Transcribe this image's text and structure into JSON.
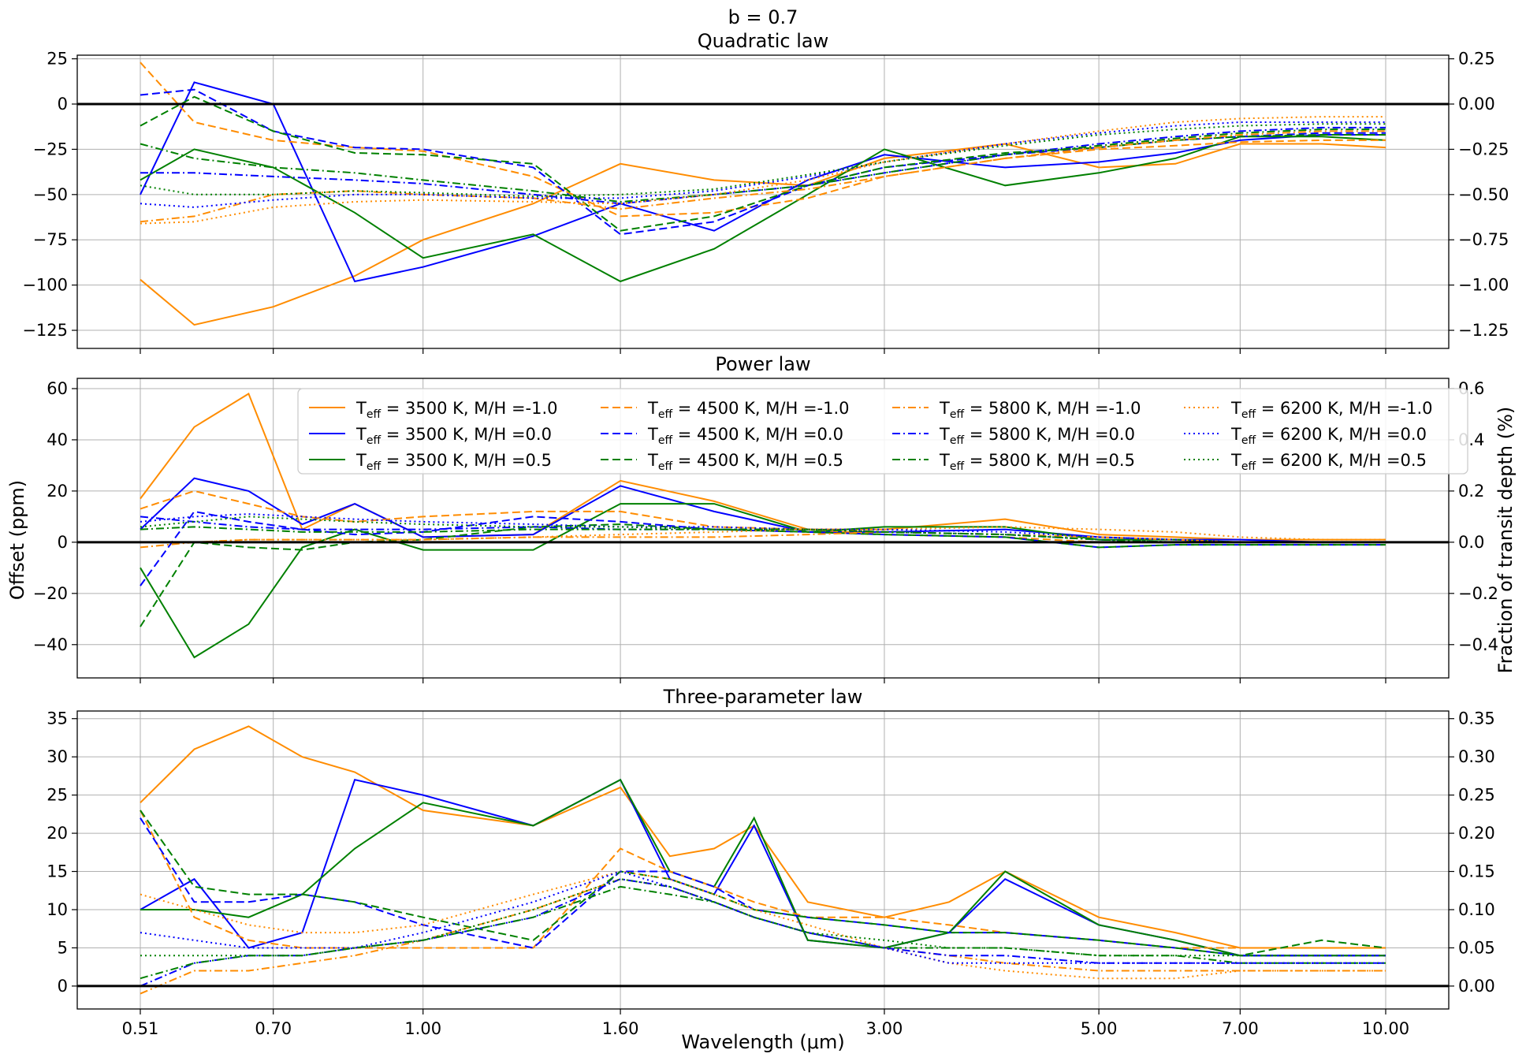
{
  "figure": {
    "suptitle": "b = 0.7",
    "xlabel": "Wavelength (μm)",
    "ylabel_left": "Offset (ppm)",
    "ylabel_right": "Fraction of transit depth (%)"
  },
  "colors": {
    "3500": "#ff8c00",
    "4500": "#ff8c00",
    "orange": "#ff8c00",
    "blue": "#0000ff",
    "green": "#008000"
  },
  "legend": {
    "entries": [
      {
        "teff": "3500",
        "mh": "-1.0",
        "color": "#ff8c00",
        "style": "solid"
      },
      {
        "teff": "3500",
        "mh": "0.0",
        "color": "#0000ff",
        "style": "solid"
      },
      {
        "teff": "3500",
        "mh": "0.5",
        "color": "#008000",
        "style": "solid"
      },
      {
        "teff": "4500",
        "mh": "-1.0",
        "color": "#ff8c00",
        "style": "dashed"
      },
      {
        "teff": "4500",
        "mh": "0.0",
        "color": "#0000ff",
        "style": "dashed"
      },
      {
        "teff": "4500",
        "mh": "0.5",
        "color": "#008000",
        "style": "dashed"
      },
      {
        "teff": "5800",
        "mh": "-1.0",
        "color": "#ff8c00",
        "style": "dashdot"
      },
      {
        "teff": "5800",
        "mh": "0.0",
        "color": "#0000ff",
        "style": "dashdot"
      },
      {
        "teff": "5800",
        "mh": "0.5",
        "color": "#008000",
        "style": "dashdot"
      },
      {
        "teff": "6200",
        "mh": "-1.0",
        "color": "#ff8c00",
        "style": "dotted"
      },
      {
        "teff": "6200",
        "mh": "0.0",
        "color": "#0000ff",
        "style": "dotted"
      },
      {
        "teff": "6200",
        "mh": "0.5",
        "color": "#008000",
        "style": "dotted"
      }
    ],
    "teff_prefix": "T",
    "teff_sub": "eff",
    "unit": "K",
    "mh_prefix": "M/H ="
  },
  "chart_data": [
    {
      "type": "line",
      "title": "Quadratic law",
      "xscale": "log",
      "xlim": [
        0.51,
        9.9
      ],
      "xticks": [
        "0.51",
        "0.70",
        "1.00",
        "1.60",
        "3.00",
        "5.00",
        "7.00",
        "10.00"
      ],
      "ylim": [
        -135,
        27
      ],
      "yticks": [
        "25",
        "0",
        "−25",
        "−50",
        "−75",
        "−100",
        "−125"
      ],
      "yticks_right": [
        "0.25",
        "0.00",
        "−0.25",
        "−0.50",
        "−0.75",
        "−1.00",
        "−1.25"
      ],
      "grid": true,
      "zero_line": true,
      "x": [
        0.51,
        0.58,
        0.7,
        0.85,
        1.0,
        1.3,
        1.6,
        2.0,
        2.5,
        3.0,
        4.0,
        5.0,
        6.0,
        7.0,
        8.5,
        9.9
      ],
      "series": [
        {
          "key": "3500/-1.0",
          "values": [
            -97,
            -122,
            -112,
            -95,
            -75,
            -55,
            -33,
            -42,
            -45,
            -30,
            -22,
            -35,
            -33,
            -22,
            -22,
            -24
          ]
        },
        {
          "key": "3500/0.0",
          "values": [
            -50,
            12,
            0,
            -98,
            -90,
            -73,
            -55,
            -70,
            -42,
            -28,
            -35,
            -32,
            -27,
            -20,
            -17,
            -17
          ]
        },
        {
          "key": "3500/0.5",
          "values": [
            -42,
            -25,
            -35,
            -60,
            -85,
            -72,
            -98,
            -80,
            -50,
            -25,
            -45,
            -38,
            -30,
            -18,
            -18,
            -20
          ]
        },
        {
          "key": "4500/-1.0",
          "values": [
            23,
            -10,
            -20,
            -24,
            -26,
            -40,
            -62,
            -60,
            -52,
            -40,
            -30,
            -25,
            -23,
            -21,
            -20,
            -20
          ]
        },
        {
          "key": "4500/0.0",
          "values": [
            5,
            8,
            -15,
            -24,
            -25,
            -35,
            -72,
            -65,
            -45,
            -35,
            -28,
            -24,
            -20,
            -18,
            -16,
            -16
          ]
        },
        {
          "key": "4500/0.5",
          "values": [
            -12,
            4,
            -15,
            -27,
            -28,
            -33,
            -70,
            -62,
            -45,
            -35,
            -27,
            -24,
            -20,
            -18,
            -17,
            -17
          ]
        },
        {
          "key": "5800/-1.0",
          "values": [
            -65,
            -62,
            -50,
            -48,
            -50,
            -52,
            -58,
            -52,
            -47,
            -40,
            -30,
            -24,
            -20,
            -17,
            -15,
            -15
          ]
        },
        {
          "key": "5800/0.0",
          "values": [
            -38,
            -38,
            -40,
            -42,
            -44,
            -50,
            -55,
            -50,
            -45,
            -38,
            -28,
            -22,
            -18,
            -15,
            -13,
            -13
          ]
        },
        {
          "key": "5800/0.5",
          "values": [
            -22,
            -30,
            -35,
            -38,
            -42,
            -48,
            -54,
            -50,
            -45,
            -38,
            -28,
            -23,
            -19,
            -16,
            -14,
            -14
          ]
        },
        {
          "key": "6200/-1.0",
          "values": [
            -66,
            -65,
            -57,
            -54,
            -53,
            -54,
            -55,
            -50,
            -42,
            -32,
            -22,
            -15,
            -10,
            -8,
            -7,
            -7
          ]
        },
        {
          "key": "6200/0.0",
          "values": [
            -55,
            -57,
            -53,
            -50,
            -50,
            -52,
            -52,
            -48,
            -40,
            -32,
            -22,
            -16,
            -12,
            -10,
            -10,
            -10
          ]
        },
        {
          "key": "6200/0.5",
          "values": [
            -45,
            -50,
            -50,
            -48,
            -49,
            -51,
            -50,
            -47,
            -39,
            -32,
            -23,
            -17,
            -14,
            -12,
            -11,
            -11
          ]
        }
      ]
    },
    {
      "type": "line",
      "title": "Power law",
      "xscale": "log",
      "xlim": [
        0.51,
        9.9
      ],
      "xticks": [
        "0.51",
        "0.70",
        "1.00",
        "1.60",
        "3.00",
        "5.00",
        "7.00",
        "10.00"
      ],
      "ylim": [
        -53,
        64
      ],
      "yticks": [
        "60",
        "40",
        "20",
        "0",
        "−20",
        "−40"
      ],
      "yticks_right": [
        "0.6",
        "0.4",
        "0.2",
        "0.0",
        "−0.2",
        "−0.4"
      ],
      "grid": true,
      "zero_line": true,
      "x": [
        0.51,
        0.58,
        0.66,
        0.75,
        0.85,
        1.0,
        1.3,
        1.6,
        2.0,
        2.5,
        3.0,
        4.0,
        5.0,
        6.0,
        7.0,
        8.5,
        9.9
      ],
      "series": [
        {
          "key": "3500/-1.0",
          "values": [
            17,
            45,
            58,
            5,
            15,
            2,
            3,
            24,
            16,
            5,
            5,
            9,
            3,
            2,
            1,
            1,
            1
          ]
        },
        {
          "key": "3500/0.0",
          "values": [
            5,
            25,
            20,
            7,
            15,
            2,
            3,
            22,
            12,
            4,
            4,
            5,
            2,
            1,
            1,
            0,
            0
          ]
        },
        {
          "key": "3500/0.5",
          "values": [
            -10,
            -45,
            -32,
            -2,
            5,
            -3,
            -3,
            15,
            15,
            4,
            6,
            6,
            1,
            1,
            0,
            0,
            0
          ]
        },
        {
          "key": "4500/-1.0",
          "values": [
            13,
            20,
            15,
            10,
            8,
            10,
            12,
            12,
            6,
            5,
            3,
            2,
            0,
            0,
            0,
            0,
            0
          ]
        },
        {
          "key": "4500/0.0",
          "values": [
            -17,
            12,
            8,
            5,
            3,
            4,
            10,
            8,
            5,
            4,
            3,
            2,
            -2,
            -1,
            -1,
            -1,
            -1
          ]
        },
        {
          "key": "4500/0.5",
          "values": [
            -33,
            0,
            -2,
            -3,
            0,
            1,
            6,
            7,
            5,
            4,
            3,
            2,
            -2,
            -1,
            -1,
            -1,
            -1
          ]
        },
        {
          "key": "5800/-1.0",
          "values": [
            -2,
            0,
            1,
            1,
            1,
            1,
            2,
            2,
            2,
            3,
            4,
            3,
            2,
            1,
            0,
            0,
            0
          ]
        },
        {
          "key": "5800/0.0",
          "values": [
            10,
            8,
            6,
            5,
            5,
            5,
            6,
            5,
            5,
            5,
            4,
            3,
            1,
            0,
            0,
            0,
            0
          ]
        },
        {
          "key": "5800/0.5",
          "values": [
            5,
            6,
            5,
            4,
            4,
            4,
            5,
            5,
            5,
            5,
            4,
            3,
            1,
            0,
            0,
            0,
            0
          ]
        },
        {
          "key": "6200/-1.0",
          "values": [
            0,
            0,
            1,
            1,
            1,
            1,
            2,
            3,
            4,
            5,
            5,
            6,
            5,
            4,
            2,
            1,
            1
          ]
        },
        {
          "key": "6200/0.0",
          "values": [
            8,
            10,
            11,
            10,
            9,
            8,
            7,
            6,
            6,
            5,
            5,
            4,
            2,
            1,
            0,
            0,
            0
          ]
        },
        {
          "key": "6200/0.5",
          "values": [
            6,
            8,
            10,
            9,
            8,
            7,
            6,
            6,
            5,
            5,
            4,
            3,
            1,
            0,
            0,
            0,
            0
          ]
        }
      ]
    },
    {
      "type": "line",
      "title": "Three-parameter law",
      "xscale": "log",
      "xlim": [
        0.51,
        9.9
      ],
      "xticks": [
        "0.51",
        "0.70",
        "1.00",
        "1.60",
        "3.00",
        "5.00",
        "7.00",
        "10.00"
      ],
      "ylim": [
        -3,
        36
      ],
      "yticks": [
        "35",
        "30",
        "25",
        "20",
        "15",
        "10",
        "5",
        "0"
      ],
      "yticks_right": [
        "0.35",
        "0.30",
        "0.25",
        "0.20",
        "0.15",
        "0.10",
        "0.05",
        "0.00"
      ],
      "grid": true,
      "zero_line": true,
      "x": [
        0.51,
        0.58,
        0.66,
        0.75,
        0.85,
        1.0,
        1.3,
        1.6,
        1.8,
        2.0,
        2.2,
        2.5,
        3.0,
        3.5,
        4.0,
        5.0,
        6.0,
        7.0,
        8.5,
        9.9
      ],
      "series": [
        {
          "key": "3500/-1.0",
          "values": [
            24,
            31,
            34,
            30,
            28,
            23,
            21,
            26,
            17,
            18,
            21,
            11,
            9,
            11,
            15,
            9,
            7,
            5,
            5,
            5
          ]
        },
        {
          "key": "3500/0.0",
          "values": [
            10,
            14,
            5,
            7,
            27,
            25,
            21,
            27,
            14,
            12,
            21,
            6,
            5,
            7,
            14,
            8,
            6,
            4,
            4,
            4
          ]
        },
        {
          "key": "3500/0.5",
          "values": [
            10,
            10,
            9,
            12,
            18,
            24,
            21,
            27,
            15,
            13,
            22,
            6,
            5,
            7,
            15,
            8,
            6,
            4,
            4,
            4
          ]
        },
        {
          "key": "4500/-1.0",
          "values": [
            23,
            9,
            6,
            5,
            5,
            5,
            5,
            18,
            15,
            13,
            11,
            9,
            9,
            8,
            7,
            6,
            5,
            5,
            5,
            5
          ]
        },
        {
          "key": "4500/0.0",
          "values": [
            22,
            11,
            11,
            12,
            11,
            8,
            5,
            15,
            15,
            13,
            10,
            9,
            8,
            7,
            7,
            6,
            5,
            4,
            4,
            4
          ]
        },
        {
          "key": "4500/0.5",
          "values": [
            23,
            13,
            12,
            12,
            11,
            9,
            6,
            15,
            14,
            12,
            10,
            9,
            8,
            7,
            7,
            6,
            5,
            4,
            6,
            5
          ]
        },
        {
          "key": "5800/-1.0",
          "values": [
            -1,
            2,
            2,
            3,
            4,
            6,
            10,
            14,
            13,
            11,
            9,
            7,
            5,
            4,
            3,
            2,
            2,
            2,
            2,
            2
          ]
        },
        {
          "key": "5800/0.0",
          "values": [
            0,
            3,
            4,
            4,
            5,
            6,
            9,
            14,
            13,
            11,
            9,
            7,
            5,
            4,
            4,
            3,
            3,
            3,
            3,
            3
          ]
        },
        {
          "key": "5800/0.5",
          "values": [
            1,
            3,
            4,
            4,
            5,
            6,
            9,
            13,
            12,
            11,
            9,
            7,
            5,
            5,
            5,
            4,
            4,
            3,
            3,
            3
          ]
        },
        {
          "key": "6200/-1.0",
          "values": [
            12,
            10,
            8,
            7,
            7,
            8,
            12,
            15,
            14,
            12,
            10,
            8,
            5,
            3,
            2,
            1,
            1,
            2,
            2,
            2
          ]
        },
        {
          "key": "6200/0.0",
          "values": [
            7,
            6,
            5,
            5,
            5,
            7,
            11,
            15,
            13,
            11,
            9,
            7,
            5,
            3,
            3,
            3,
            3,
            3,
            3,
            3
          ]
        },
        {
          "key": "6200/0.5",
          "values": [
            4,
            4,
            4,
            4,
            5,
            6,
            10,
            14,
            13,
            11,
            9,
            7,
            6,
            5,
            5,
            4,
            4,
            4,
            4,
            4
          ]
        }
      ]
    }
  ]
}
